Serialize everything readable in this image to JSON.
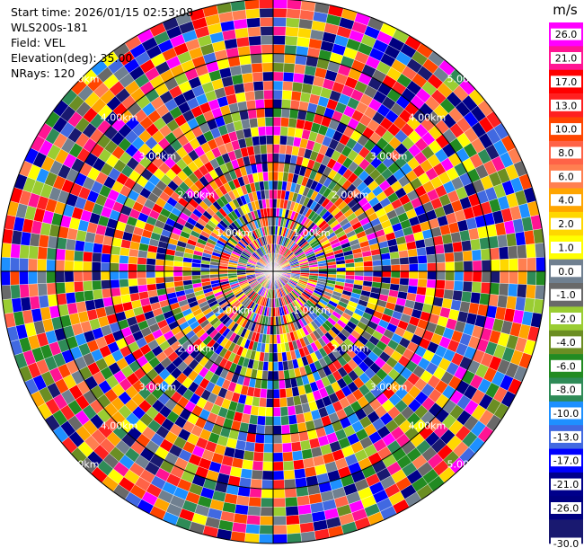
{
  "info": {
    "start_time": "Start time: 2026/01/15 02:53:08",
    "station": "WLS200s-181",
    "field": "Field: VEL",
    "elevation": "Elevation(deg): 35.00",
    "nrays": "NRays: 120"
  },
  "chart_data": {
    "type": "heatmap",
    "projection": "polar-ppi",
    "field": "VEL",
    "nrays": 120,
    "elevation_deg": 35.0,
    "range_rings_km": [
      1.0,
      2.0,
      3.0,
      4.0,
      5.0
    ],
    "range_labels": [
      "1.00km",
      "2.00km",
      "3.00km",
      "4.00km",
      "5.00km"
    ],
    "max_range_km": 5.0,
    "colorbar": {
      "unit": "m/s",
      "ticks": [
        "26.0",
        "21.0",
        "17.0",
        "13.0",
        "10.0",
        "8.0",
        "6.0",
        "4.0",
        "2.0",
        "1.0",
        "0.0",
        "-1.0",
        "-2.0",
        "-4.0",
        "-6.0",
        "-8.0",
        "-10.0",
        "-13.0",
        "-17.0",
        "-21.0",
        "-26.0",
        "-30.0"
      ],
      "colors": [
        "#ff00ff",
        "#ff1493",
        "#ff0000",
        "#ff2020",
        "#ff4500",
        "#ff6347",
        "#ff7f50",
        "#ffa500",
        "#ffd700",
        "#ffff00",
        "#708090",
        "#696969",
        "#9acd32",
        "#6b8e23",
        "#228b22",
        "#2e8b57",
        "#1e90ff",
        "#4169e1",
        "#0000ff",
        "#00008b",
        "#000080",
        "#191970"
      ]
    }
  }
}
